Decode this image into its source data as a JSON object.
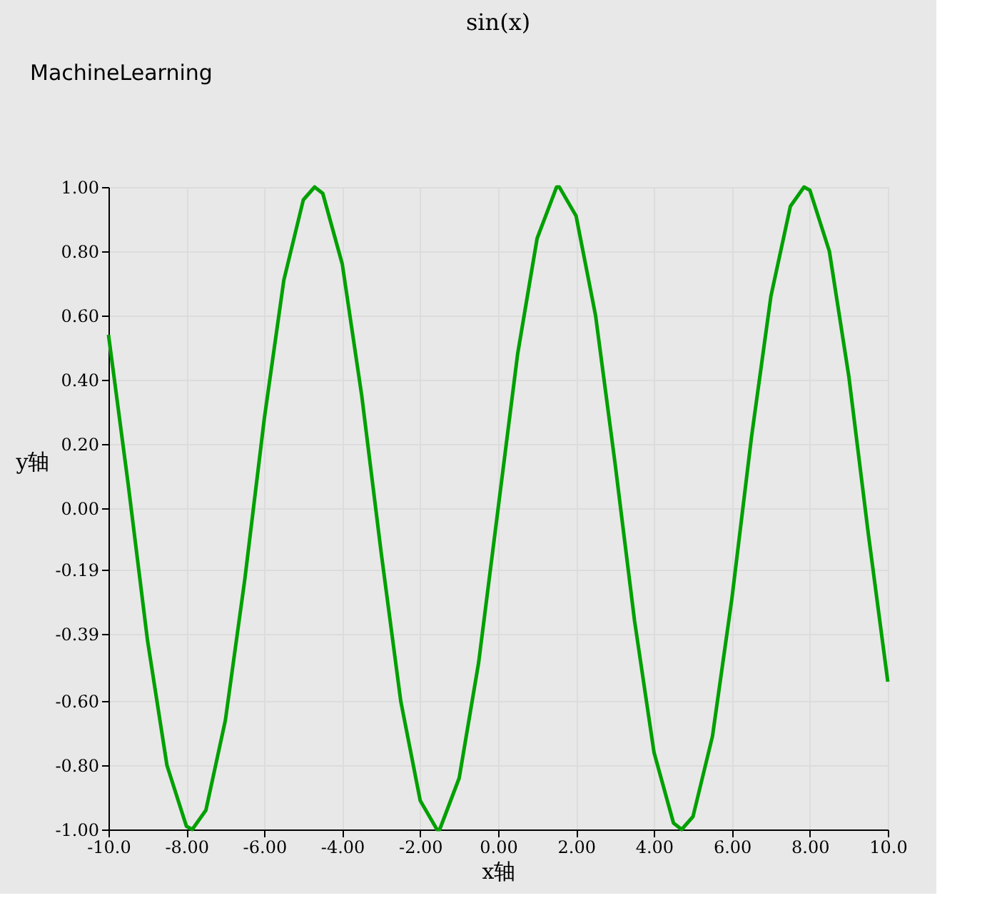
{
  "chart_data": {
    "type": "line",
    "title": "sin(x)",
    "xlabel": "x轴",
    "ylabel": "y轴",
    "annotations": [
      "MachineLearning"
    ],
    "x": [
      -10,
      -9.5,
      -9,
      -8.5,
      -8,
      -7.85,
      -7.5,
      -7,
      -6.5,
      -6,
      -5.5,
      -5,
      -4.71,
      -4.5,
      -4,
      -3.5,
      -3,
      -2.5,
      -2,
      -1.57,
      -1.5,
      -1,
      -0.5,
      0,
      0.5,
      1,
      1.5,
      1.57,
      2,
      2.5,
      3,
      3.5,
      4,
      4.5,
      4.71,
      5,
      5.5,
      6,
      6.5,
      7,
      7.5,
      7.85,
      8,
      8.5,
      9,
      9.5,
      10
    ],
    "series": [
      {
        "color": "#00a000",
        "values": [
          0.54,
          0.08,
          -0.41,
          -0.8,
          -0.99,
          -1,
          -0.94,
          -0.66,
          -0.22,
          0.28,
          0.71,
          0.96,
          1,
          0.98,
          0.76,
          0.35,
          -0.14,
          -0.6,
          -0.91,
          -1,
          -1,
          -0.84,
          -0.48,
          0,
          0.48,
          0.84,
          1,
          1,
          0.91,
          0.6,
          0.14,
          -0.35,
          -0.76,
          -0.98,
          -1,
          -0.96,
          -0.71,
          -0.28,
          0.22,
          0.66,
          0.94,
          1,
          0.99,
          0.8,
          0.41,
          -0.08,
          -0.54
        ]
      }
    ],
    "xlim": [
      -10,
      10
    ],
    "xticks": [
      {
        "value": -10,
        "label": "-10.0"
      },
      {
        "value": -8,
        "label": "-8.00"
      },
      {
        "value": -6,
        "label": "-6.00"
      },
      {
        "value": -4,
        "label": "-4.00"
      },
      {
        "value": -2,
        "label": "-2.00"
      },
      {
        "value": 0,
        "label": "0.00"
      },
      {
        "value": 2,
        "label": "2.00"
      },
      {
        "value": 4,
        "label": "4.00"
      },
      {
        "value": 6,
        "label": "6.00"
      },
      {
        "value": 8,
        "label": "8.00"
      },
      {
        "value": 10,
        "label": "10.0"
      }
    ],
    "ylim": [
      -1,
      1
    ],
    "yticks": [
      {
        "value": -1,
        "label": "-1.00"
      },
      {
        "value": -0.8,
        "label": "-0.80"
      },
      {
        "value": -0.6,
        "label": "-0.60"
      },
      {
        "value": -0.39,
        "label": "-0.39"
      },
      {
        "value": -0.19,
        "label": "-0.19"
      },
      {
        "value": 0,
        "label": "0.00"
      },
      {
        "value": 0.2,
        "label": "0.20"
      },
      {
        "value": 0.4,
        "label": "0.40"
      },
      {
        "value": 0.6,
        "label": "0.60"
      },
      {
        "value": 0.8,
        "label": "0.80"
      },
      {
        "value": 1,
        "label": "1.00"
      }
    ],
    "grid": true,
    "marker": "none",
    "line_style": "solid"
  }
}
